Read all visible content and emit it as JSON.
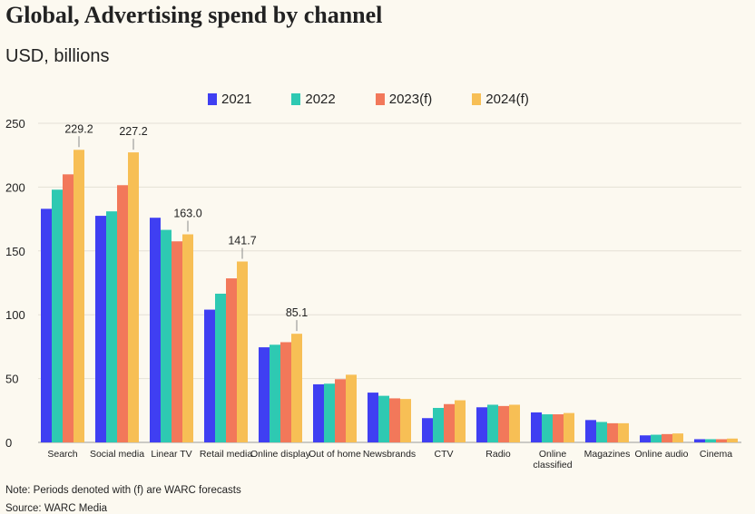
{
  "header": {
    "title": "Global, Advertising spend by channel",
    "subtitle": "USD, billions"
  },
  "footer": {
    "note": "Note: Periods denoted with (f) are WARC forecasts",
    "source": "Source: WARC Media"
  },
  "colors": {
    "2021": "#3f3ff2",
    "2022": "#2ec9b2",
    "2023(f)": "#f2785a",
    "2024(f)": "#f7bf55",
    "grid": "#e4e0d6",
    "text": "#222222"
  },
  "chart_data": {
    "type": "bar",
    "title": "Global, Advertising spend by channel",
    "subtitle": "USD, billions",
    "xlabel": "",
    "ylabel": "",
    "ylim": [
      0,
      250
    ],
    "yticks": [
      0,
      50,
      100,
      150,
      200,
      250
    ],
    "grid": true,
    "legend_position": "top-center",
    "categories": [
      [
        "Search"
      ],
      [
        "Social media"
      ],
      [
        "Linear TV"
      ],
      [
        "Retail media"
      ],
      [
        "Online display"
      ],
      [
        "Out of home"
      ],
      [
        "Newsbrands"
      ],
      [
        "CTV"
      ],
      [
        "Radio"
      ],
      [
        "Online",
        "classified"
      ],
      [
        "Magazines"
      ],
      [
        "Online audio"
      ],
      [
        "Cinema"
      ]
    ],
    "series": [
      {
        "name": "2021",
        "values": [
          183,
          177.5,
          176,
          104,
          74.5,
          45.5,
          39,
          19,
          27.5,
          23.5,
          17.5,
          5.5,
          2.5
        ]
      },
      {
        "name": "2022",
        "values": [
          198,
          181,
          166.5,
          116.5,
          76.5,
          46,
          36.5,
          27,
          29.5,
          22,
          16,
          6,
          2.5
        ]
      },
      {
        "name": "2023(f)",
        "values": [
          210,
          201.5,
          157.5,
          128.5,
          78.5,
          49.5,
          34.5,
          30,
          28.5,
          22,
          15,
          6.5,
          2.5
        ]
      },
      {
        "name": "2024(f)",
        "values": [
          229.2,
          227.2,
          163.0,
          141.7,
          85.1,
          53,
          34,
          33,
          29.5,
          23,
          15,
          7,
          3
        ]
      }
    ],
    "annotations": [
      {
        "category_index": 0,
        "series": "2024(f)",
        "text": "229.2"
      },
      {
        "category_index": 1,
        "series": "2024(f)",
        "text": "227.2"
      },
      {
        "category_index": 2,
        "series": "2024(f)",
        "text": "163.0"
      },
      {
        "category_index": 3,
        "series": "2024(f)",
        "text": "141.7"
      },
      {
        "category_index": 4,
        "series": "2024(f)",
        "text": "85.1"
      }
    ]
  }
}
